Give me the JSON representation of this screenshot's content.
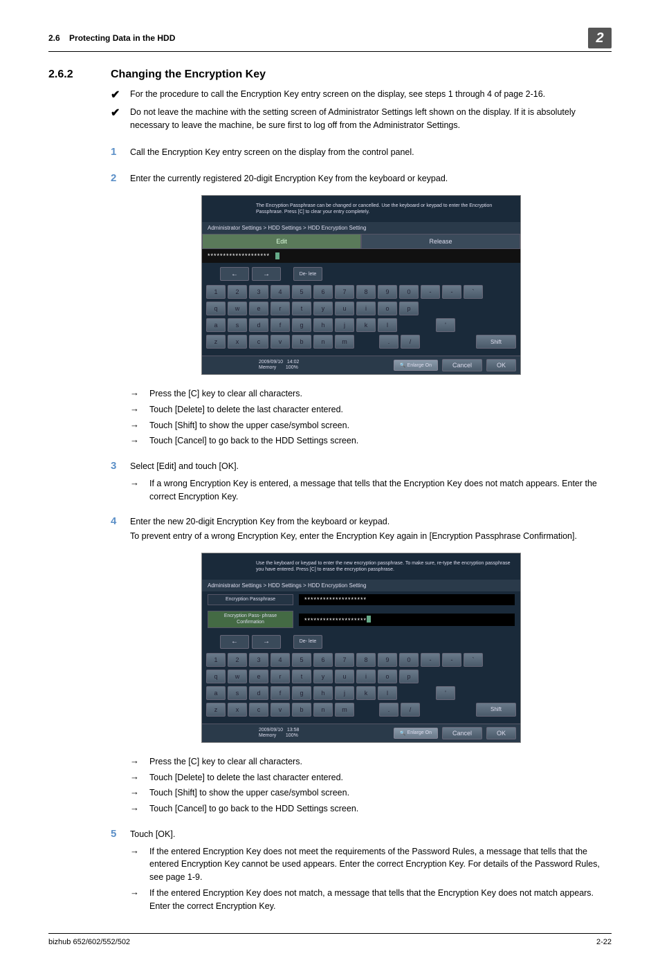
{
  "header": {
    "section_ref": "2.6",
    "section_title": "Protecting Data in the HDD",
    "chapter_num": "2"
  },
  "section": {
    "number": "2.6.2",
    "title": "Changing the Encryption Key"
  },
  "prereqs": [
    "For the procedure to call the Encryption Key entry screen on the display, see steps 1 through 4 of page 2-16.",
    "Do not leave the machine with the setting screen of Administrator Settings left shown on the display. If it is absolutely necessary to leave the machine, be sure first to log off from the Administrator Settings."
  ],
  "steps": {
    "s1": {
      "num": "1",
      "text": "Call the Encryption Key entry screen on the display from the control panel."
    },
    "s2": {
      "num": "2",
      "text": "Enter the currently registered 20-digit Encryption Key from the keyboard or keypad."
    },
    "s2_subs": [
      "Press the [C] key to clear all characters.",
      "Touch [Delete] to delete the last character entered.",
      "Touch [Shift] to show the upper case/symbol screen.",
      "Touch [Cancel] to go back to the HDD Settings screen."
    ],
    "s3": {
      "num": "3",
      "text": "Select [Edit] and touch [OK]."
    },
    "s3_subs": [
      "If a wrong Encryption Key is entered, a message that tells that the Encryption Key does not match appears. Enter the correct Encryption Key."
    ],
    "s4": {
      "num": "4",
      "text": "Enter the new 20-digit Encryption Key from the keyboard or keypad.",
      "text2": "To prevent entry of a wrong Encryption Key, enter the Encryption Key again in [Encryption Passphrase Confirmation]."
    },
    "s4_subs": [
      "Press the [C] key to clear all characters.",
      "Touch [Delete] to delete the last character entered.",
      "Touch [Shift] to show the upper case/symbol screen.",
      "Touch [Cancel] to go back to the HDD Settings screen."
    ],
    "s5": {
      "num": "5",
      "text": "Touch [OK]."
    },
    "s5_subs": [
      "If the entered Encryption Key does not meet the requirements of the Password Rules, a message that tells that the entered Encryption Key cannot be used appears. Enter the correct Encryption Key. For details of the Password Rules, see page 1-9.",
      "If the entered Encryption Key does not match, a message that tells that the Encryption Key does not match appears. Enter the correct Encryption Key."
    ]
  },
  "screen1": {
    "top_msg": "The Encryption Passphrase can be changed or cancelled. Use the keyboard or keypad to enter the Encryption Passphrase. Press [C] to clear your entry completely.",
    "breadcrumb": "Administrator Settings > HDD Settings > HDD Encryption Setting",
    "tab_edit": "Edit",
    "tab_release": "Release",
    "input_value": "********************",
    "delete_label": "De-\nlete",
    "row1": [
      "1",
      "2",
      "3",
      "4",
      "5",
      "6",
      "7",
      "8",
      "9",
      "0",
      "-",
      "-",
      "`"
    ],
    "row2": [
      "q",
      "w",
      "e",
      "r",
      "t",
      "y",
      "u",
      "i",
      "o",
      "p"
    ],
    "row3": [
      "a",
      "s",
      "d",
      "f",
      "g",
      "h",
      "j",
      "k",
      "l"
    ],
    "row4": [
      "z",
      "x",
      "c",
      "v",
      "b",
      "n",
      "m"
    ],
    "row4_extra": [
      ".",
      "/"
    ],
    "shift": "Shift",
    "date": "2009/09/10",
    "time": "14:02",
    "mem": "Memory",
    "mempct": "100%",
    "enlarge": "Enlarge\nOn",
    "cancel": "Cancel",
    "ok": "OK"
  },
  "screen2": {
    "top_msg": "Use the keyboard or keypad to enter the new encryption passphrase. To make sure, re-type the encryption passphrase you have entered. Press [C] to erase the encryption passphrase.",
    "breadcrumb": "Administrator Settings > HDD Settings > HDD Encryption Setting",
    "field1_label": "Encryption\nPassphrase",
    "field1_value": "********************",
    "field2_label": "Encryption Pass-\nphrase Confirmation",
    "field2_value": "********************",
    "delete_label": "De-\nlete",
    "row1": [
      "1",
      "2",
      "3",
      "4",
      "5",
      "6",
      "7",
      "8",
      "9",
      "0",
      "-",
      "-",
      "`"
    ],
    "row2": [
      "q",
      "w",
      "e",
      "r",
      "t",
      "y",
      "u",
      "i",
      "o",
      "p"
    ],
    "row3": [
      "a",
      "s",
      "d",
      "f",
      "g",
      "h",
      "j",
      "k",
      "l"
    ],
    "row4": [
      "z",
      "x",
      "c",
      "v",
      "b",
      "n",
      "m"
    ],
    "row4_extra": [
      ".",
      "/"
    ],
    "shift": "Shift",
    "date": "2009/09/10",
    "time": "13:58",
    "mem": "Memory",
    "mempct": "100%",
    "enlarge": "Enlarge\nOn",
    "cancel": "Cancel",
    "ok": "OK"
  },
  "footer": {
    "left": "bizhub 652/602/552/502",
    "right": "2-22"
  }
}
